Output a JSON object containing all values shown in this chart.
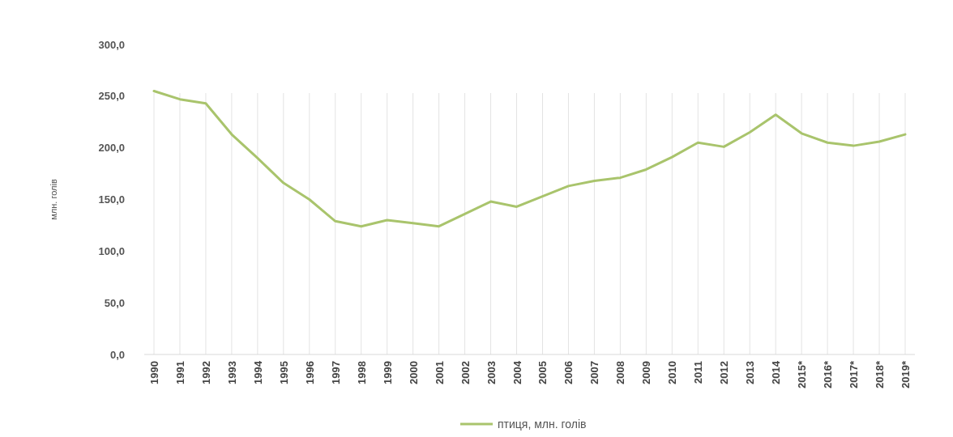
{
  "chart_data": {
    "type": "line",
    "ylabel": "млн. голів",
    "categories": [
      "1990",
      "1991",
      "1992",
      "1993",
      "1994",
      "1995",
      "1996",
      "1997",
      "1998",
      "1999",
      "2000",
      "2001",
      "2002",
      "2003",
      "2004",
      "2005",
      "2006",
      "2007",
      "2008",
      "2009",
      "2010",
      "2011",
      "2012",
      "2013",
      "2014",
      "2015*",
      "2016*",
      "2017*",
      "2018*",
      "2019*"
    ],
    "series": [
      {
        "name": "птиця, млн. голів",
        "color": "#a9c46c",
        "values": [
          255,
          247,
          243,
          213,
          190,
          166,
          150,
          129,
          124,
          130,
          127,
          124,
          136,
          148,
          143,
          153,
          163,
          168,
          171,
          179,
          191,
          205,
          201,
          215,
          232,
          214,
          205,
          202,
          206,
          213
        ]
      }
    ],
    "ylim": [
      0,
      300
    ],
    "yticks": [
      {
        "value": 0,
        "label": "0,0"
      },
      {
        "value": 50,
        "label": "50,0"
      },
      {
        "value": 100,
        "label": "100,0"
      },
      {
        "value": 150,
        "label": "150,0"
      },
      {
        "value": 200,
        "label": "200,0"
      },
      {
        "value": 250,
        "label": "250,0"
      },
      {
        "value": 300,
        "label": "300,0"
      }
    ],
    "grid": "x",
    "legend": "bottom",
    "marker": "none",
    "line_style": "solid"
  }
}
